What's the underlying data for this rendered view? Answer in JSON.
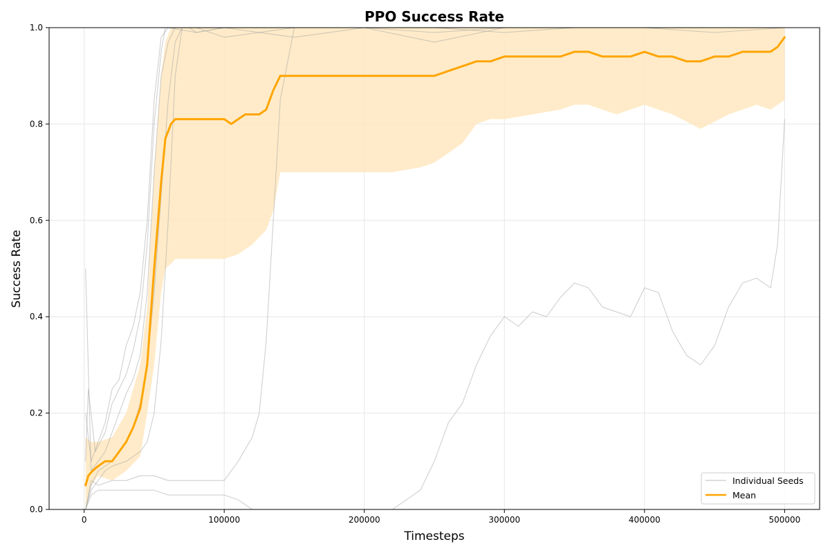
{
  "chart_data": {
    "type": "line",
    "title": "PPO Success Rate",
    "xlabel": "Timesteps",
    "ylabel": "Success Rate",
    "xlim": [
      -25000,
      525000
    ],
    "ylim": [
      0,
      1
    ],
    "xticks": [
      0,
      100000,
      200000,
      300000,
      400000,
      500000
    ],
    "xtick_labels": [
      "0",
      "100000",
      "200000",
      "300000",
      "400000",
      "500000"
    ],
    "yticks": [
      0,
      0.2,
      0.4,
      0.6,
      0.8,
      1.0
    ],
    "ytick_labels": [
      "0.0",
      "0.2",
      "0.4",
      "0.6",
      "0.8",
      "1.0"
    ],
    "grid": true,
    "legend": {
      "position": "lower-right",
      "entries": [
        {
          "label": "Individual Seeds",
          "color": "#b0b0b0"
        },
        {
          "label": "Mean",
          "color": "#ffa500"
        }
      ]
    },
    "seed_color": "#a8a8a8",
    "mean_color": "#ffa500",
    "band_color": "#ffe8c0",
    "seeds": [
      {
        "x": [
          1000,
          5000,
          10000,
          15000,
          20000,
          25000,
          30000,
          35000,
          40000,
          45000,
          50000,
          55000,
          60000,
          62000,
          80000,
          100000,
          150000,
          200000,
          250000,
          300000,
          350000,
          400000,
          450000,
          500000
        ],
        "y": [
          0.2,
          0.1,
          0.14,
          0.18,
          0.25,
          0.27,
          0.34,
          0.38,
          0.45,
          0.6,
          0.85,
          0.98,
          1.0,
          1.0,
          1.0,
          1.0,
          1.0,
          1.0,
          1.0,
          1.0,
          1.0,
          1.0,
          1.0,
          1.0
        ]
      },
      {
        "x": [
          1000,
          3000,
          8000,
          15000,
          20000,
          25000,
          30000,
          35000,
          40000,
          45000,
          50000,
          55000,
          58000,
          60000,
          80000,
          100000,
          150000,
          200000,
          250000,
          300000,
          350000,
          400000,
          450000,
          500000
        ],
        "y": [
          0.1,
          0.25,
          0.12,
          0.16,
          0.22,
          0.25,
          0.28,
          0.33,
          0.4,
          0.55,
          0.8,
          0.95,
          1.0,
          1.0,
          0.99,
          1.0,
          0.98,
          1.0,
          1.0,
          0.99,
          1.0,
          1.0,
          0.99,
          1.0
        ]
      },
      {
        "x": [
          1000,
          5000,
          10000,
          15000,
          20000,
          25000,
          30000,
          35000,
          40000,
          45000,
          50000,
          55000,
          60000,
          65000,
          80000,
          100000,
          150000,
          200000,
          250000,
          300000,
          350000,
          400000,
          450000,
          500000
        ],
        "y": [
          0.5,
          0.08,
          0.1,
          0.12,
          0.16,
          0.2,
          0.24,
          0.27,
          0.32,
          0.45,
          0.7,
          0.9,
          0.97,
          1.0,
          1.0,
          0.98,
          1.0,
          1.0,
          0.97,
          1.0,
          1.0,
          1.0,
          1.0,
          1.0
        ]
      },
      {
        "x": [
          1000,
          5000,
          10000,
          15000,
          20000,
          25000,
          30000,
          35000,
          40000,
          45000,
          50000,
          55000,
          60000,
          65000,
          70000,
          100000,
          150000,
          200000,
          250000,
          300000,
          350000,
          400000,
          450000,
          500000
        ],
        "y": [
          0.0,
          0.05,
          0.08,
          0.09,
          0.1,
          0.12,
          0.14,
          0.17,
          0.22,
          0.3,
          0.45,
          0.65,
          0.85,
          0.97,
          1.0,
          1.0,
          1.0,
          1.0,
          1.0,
          1.0,
          1.0,
          1.0,
          1.0,
          1.0
        ]
      },
      {
        "x": [
          1000,
          5000,
          10000,
          15000,
          20000,
          30000,
          40000,
          45000,
          50000,
          55000,
          60000,
          65000,
          70000,
          75000,
          80000,
          100000,
          150000,
          200000,
          250000,
          300000,
          350000,
          400000,
          450000,
          500000
        ],
        "y": [
          0.0,
          0.04,
          0.06,
          0.08,
          0.09,
          0.1,
          0.12,
          0.14,
          0.2,
          0.35,
          0.6,
          0.9,
          1.0,
          1.0,
          0.99,
          1.0,
          1.0,
          1.0,
          0.99,
          1.0,
          1.0,
          1.0,
          1.0,
          1.0
        ]
      },
      {
        "x": [
          1000,
          5000,
          10000,
          20000,
          30000,
          40000,
          45000,
          50000,
          60000,
          80000,
          100000,
          110000,
          120000,
          125000,
          130000,
          135000,
          140000,
          150000,
          200000,
          250000,
          300000,
          350000,
          400000,
          450000,
          500000
        ],
        "y": [
          0.0,
          0.06,
          0.05,
          0.06,
          0.06,
          0.07,
          0.07,
          0.07,
          0.06,
          0.06,
          0.06,
          0.1,
          0.15,
          0.2,
          0.35,
          0.6,
          0.85,
          1.0,
          1.0,
          1.0,
          1.0,
          1.0,
          1.0,
          1.0,
          1.0
        ]
      },
      {
        "x": [
          1000,
          5000,
          10000,
          20000,
          30000,
          40000,
          50000,
          60000,
          80000,
          100000,
          110000,
          115000,
          120000,
          150000,
          200000,
          220000,
          230000,
          240000,
          250000,
          260000,
          270000,
          280000,
          290000,
          300000,
          310000,
          320000,
          330000,
          340000,
          350000,
          360000,
          370000,
          380000,
          390000,
          400000,
          410000,
          420000,
          430000,
          440000,
          450000,
          460000,
          470000,
          480000,
          490000,
          495000,
          500000
        ],
        "y": [
          0.0,
          0.03,
          0.04,
          0.04,
          0.04,
          0.04,
          0.04,
          0.03,
          0.03,
          0.03,
          0.02,
          0.01,
          0.0,
          0.0,
          0.0,
          0.0,
          0.02,
          0.04,
          0.1,
          0.18,
          0.22,
          0.3,
          0.36,
          0.4,
          0.38,
          0.41,
          0.4,
          0.44,
          0.47,
          0.46,
          0.42,
          0.41,
          0.4,
          0.46,
          0.45,
          0.37,
          0.32,
          0.3,
          0.34,
          0.42,
          0.47,
          0.48,
          0.46,
          0.55,
          0.81
        ]
      }
    ],
    "series": [
      {
        "name": "Mean",
        "x": [
          1000,
          3000,
          6000,
          10000,
          15000,
          20000,
          25000,
          30000,
          35000,
          40000,
          45000,
          50000,
          55000,
          58000,
          62000,
          65000,
          70000,
          80000,
          90000,
          100000,
          105000,
          110000,
          115000,
          125000,
          130000,
          135000,
          140000,
          145000,
          150000,
          160000,
          170000,
          180000,
          190000,
          200000,
          210000,
          220000,
          230000,
          240000,
          250000,
          260000,
          270000,
          280000,
          290000,
          300000,
          310000,
          320000,
          330000,
          340000,
          350000,
          360000,
          370000,
          380000,
          390000,
          400000,
          410000,
          420000,
          430000,
          440000,
          450000,
          460000,
          470000,
          480000,
          490000,
          495000,
          500000
        ],
        "y": [
          0.05,
          0.07,
          0.08,
          0.09,
          0.1,
          0.1,
          0.12,
          0.14,
          0.17,
          0.21,
          0.3,
          0.5,
          0.68,
          0.77,
          0.8,
          0.81,
          0.81,
          0.81,
          0.81,
          0.81,
          0.8,
          0.81,
          0.82,
          0.82,
          0.83,
          0.87,
          0.9,
          0.9,
          0.9,
          0.9,
          0.9,
          0.9,
          0.9,
          0.9,
          0.9,
          0.9,
          0.9,
          0.9,
          0.9,
          0.91,
          0.92,
          0.93,
          0.93,
          0.94,
          0.94,
          0.94,
          0.94,
          0.94,
          0.95,
          0.95,
          0.94,
          0.94,
          0.94,
          0.95,
          0.94,
          0.94,
          0.93,
          0.93,
          0.94,
          0.94,
          0.95,
          0.95,
          0.95,
          0.96,
          0.98
        ]
      }
    ],
    "band": {
      "x": [
        1000,
        5000,
        10000,
        20000,
        30000,
        40000,
        45000,
        50000,
        55000,
        58000,
        62000,
        65000,
        70000,
        80000,
        90000,
        100000,
        110000,
        120000,
        130000,
        135000,
        140000,
        150000,
        200000,
        220000,
        240000,
        250000,
        260000,
        270000,
        280000,
        290000,
        300000,
        320000,
        340000,
        350000,
        360000,
        380000,
        400000,
        420000,
        440000,
        460000,
        480000,
        490000,
        500000
      ],
      "lower": [
        0.0,
        0.05,
        0.07,
        0.06,
        0.08,
        0.11,
        0.2,
        0.3,
        0.45,
        0.5,
        0.51,
        0.52,
        0.52,
        0.52,
        0.52,
        0.52,
        0.53,
        0.55,
        0.58,
        0.62,
        0.7,
        0.7,
        0.7,
        0.7,
        0.71,
        0.72,
        0.74,
        0.76,
        0.8,
        0.81,
        0.81,
        0.82,
        0.83,
        0.84,
        0.84,
        0.82,
        0.84,
        0.82,
        0.79,
        0.82,
        0.84,
        0.83,
        0.85
      ],
      "upper": [
        0.15,
        0.14,
        0.14,
        0.15,
        0.2,
        0.3,
        0.42,
        0.7,
        0.9,
        0.97,
        1.0,
        1.0,
        1.0,
        1.0,
        1.0,
        1.0,
        1.0,
        1.0,
        1.0,
        1.0,
        1.0,
        1.0,
        1.0,
        1.0,
        1.0,
        1.0,
        1.0,
        1.0,
        1.0,
        1.0,
        1.0,
        1.0,
        1.0,
        1.0,
        1.0,
        1.0,
        1.0,
        1.0,
        1.0,
        1.0,
        1.0,
        1.0,
        1.0
      ]
    }
  }
}
